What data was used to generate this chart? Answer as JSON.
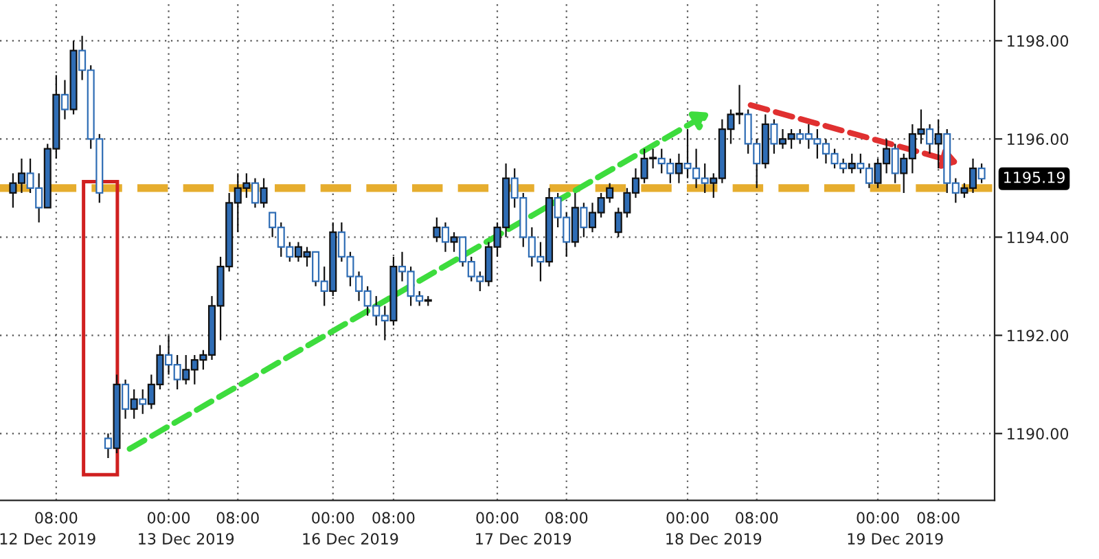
{
  "chart_data": {
    "type": "candlestick",
    "categories": [
      null,
      null,
      null,
      null,
      "12 Dec 2019",
      "08:00",
      null,
      null,
      null,
      null,
      null,
      null,
      null,
      null,
      null,
      null,
      null,
      null,
      "00:00",
      null,
      "13 Dec 2019",
      null,
      null,
      null,
      null,
      null,
      "08:00",
      null,
      null,
      null,
      null,
      null,
      null,
      null,
      null,
      null,
      null,
      "00:00",
      null,
      "16 Dec 2019",
      null,
      null,
      null,
      null,
      "08:00",
      null,
      null,
      null,
      null,
      null,
      null,
      null,
      null,
      null,
      null,
      null,
      "00:00",
      null,
      null,
      "17 Dec 2019",
      null,
      null,
      null,
      null,
      "08:00",
      null,
      null,
      null,
      null,
      null,
      null,
      null,
      null,
      null,
      null,
      null,
      null,
      null,
      "00:00",
      null,
      null,
      "18 Dec 2019",
      null,
      null,
      null,
      null,
      "08:00",
      null,
      null,
      null,
      null,
      null,
      null,
      null,
      null,
      null,
      null,
      null,
      null,
      null,
      "00:00",
      null,
      "19 Dec 2019",
      null,
      null,
      null,
      null,
      "08:00",
      null,
      null,
      null,
      null,
      null
    ],
    "ohlc": [
      [
        1194.9,
        1195.3,
        1194.6,
        1195.1
      ],
      [
        1195.1,
        1195.6,
        1194.9,
        1195.3
      ],
      [
        1195.3,
        1195.6,
        1194.9,
        1195.0
      ],
      [
        1195.0,
        1195.3,
        1194.3,
        1194.6
      ],
      [
        1194.6,
        1195.9,
        1194.6,
        1195.8
      ],
      [
        1195.8,
        1197.3,
        1195.6,
        1196.9
      ],
      [
        1196.9,
        1197.2,
        1196.4,
        1196.6
      ],
      [
        1196.6,
        1198.0,
        1196.5,
        1197.8
      ],
      [
        1197.8,
        1198.1,
        1197.2,
        1197.4
      ],
      [
        1197.4,
        1197.5,
        1195.8,
        1196.0
      ],
      [
        1196.0,
        1196.1,
        1194.7,
        1194.9
      ],
      [
        1189.9,
        1190.0,
        1189.5,
        1189.7
      ],
      [
        1189.7,
        1191.2,
        1189.6,
        1191.0
      ],
      [
        1191.0,
        1191.1,
        1190.3,
        1190.5
      ],
      [
        1190.5,
        1190.9,
        1190.3,
        1190.7
      ],
      [
        1190.7,
        1190.9,
        1190.4,
        1190.6
      ],
      [
        1190.6,
        1191.2,
        1190.5,
        1191.0
      ],
      [
        1191.0,
        1191.8,
        1190.9,
        1191.6
      ],
      [
        1191.6,
        1192.0,
        1191.2,
        1191.4
      ],
      [
        1191.4,
        1191.6,
        1190.9,
        1191.1
      ],
      [
        1191.1,
        1191.6,
        1191.0,
        1191.3
      ],
      [
        1191.3,
        1191.6,
        1191.0,
        1191.5
      ],
      [
        1191.5,
        1191.7,
        1191.3,
        1191.6
      ],
      [
        1191.6,
        1192.8,
        1191.5,
        1192.6
      ],
      [
        1192.6,
        1193.6,
        1191.9,
        1193.4
      ],
      [
        1193.4,
        1194.9,
        1193.3,
        1194.7
      ],
      [
        1194.7,
        1195.3,
        1194.1,
        1195.0
      ],
      [
        1195.0,
        1195.3,
        1194.8,
        1195.1
      ],
      [
        1195.1,
        1195.2,
        1194.6,
        1194.7
      ],
      [
        1194.7,
        1195.2,
        1194.6,
        1195.0
      ],
      [
        1194.5,
        1194.5,
        1194.0,
        1194.2
      ],
      [
        1194.2,
        1194.3,
        1193.6,
        1193.8
      ],
      [
        1193.8,
        1193.9,
        1193.5,
        1193.6
      ],
      [
        1193.6,
        1193.9,
        1193.5,
        1193.8
      ],
      [
        1193.6,
        1193.8,
        1193.4,
        1193.7
      ],
      [
        1193.7,
        1193.7,
        1193.0,
        1193.1
      ],
      [
        1193.1,
        1193.4,
        1192.6,
        1192.9
      ],
      [
        1192.9,
        1194.3,
        1192.8,
        1194.1
      ],
      [
        1194.1,
        1194.3,
        1193.5,
        1193.6
      ],
      [
        1193.6,
        1193.7,
        1193.0,
        1193.2
      ],
      [
        1193.2,
        1193.3,
        1192.7,
        1192.9
      ],
      [
        1192.9,
        1193.0,
        1192.4,
        1192.6
      ],
      [
        1192.6,
        1192.8,
        1192.2,
        1192.4
      ],
      [
        1192.4,
        1192.6,
        1191.9,
        1192.3
      ],
      [
        1192.3,
        1193.6,
        1192.2,
        1193.4
      ],
      [
        1193.4,
        1193.7,
        1193.1,
        1193.3
      ],
      [
        1193.3,
        1193.4,
        1192.6,
        1192.8
      ],
      [
        1192.8,
        1192.9,
        1192.6,
        1192.7
      ],
      [
        1192.7,
        1192.8,
        1192.6,
        1192.7
      ],
      [
        1194.0,
        1194.4,
        1193.9,
        1194.2
      ],
      [
        1194.2,
        1194.3,
        1193.7,
        1193.9
      ],
      [
        1193.9,
        1194.1,
        1193.7,
        1194.0
      ],
      [
        1194.0,
        1194.0,
        1193.4,
        1193.5
      ],
      [
        1193.5,
        1193.6,
        1193.1,
        1193.2
      ],
      [
        1193.2,
        1193.3,
        1192.9,
        1193.1
      ],
      [
        1193.1,
        1193.9,
        1193.0,
        1193.8
      ],
      [
        1193.8,
        1194.3,
        1193.6,
        1194.2
      ],
      [
        1194.2,
        1195.5,
        1194.0,
        1195.2
      ],
      [
        1195.2,
        1195.4,
        1194.6,
        1194.8
      ],
      [
        1194.8,
        1194.9,
        1193.8,
        1194.0
      ],
      [
        1194.0,
        1194.2,
        1193.4,
        1193.6
      ],
      [
        1193.6,
        1193.9,
        1193.1,
        1193.5
      ],
      [
        1193.5,
        1195.0,
        1193.4,
        1194.8
      ],
      [
        1194.8,
        1194.9,
        1194.2,
        1194.4
      ],
      [
        1194.4,
        1194.5,
        1193.6,
        1193.9
      ],
      [
        1193.9,
        1194.9,
        1193.8,
        1194.6
      ],
      [
        1194.6,
        1194.7,
        1194.0,
        1194.2
      ],
      [
        1194.2,
        1194.7,
        1194.1,
        1194.5
      ],
      [
        1194.5,
        1194.9,
        1194.4,
        1194.8
      ],
      [
        1194.8,
        1195.1,
        1194.7,
        1195.0
      ],
      [
        1194.1,
        1194.6,
        1194.0,
        1194.5
      ],
      [
        1194.5,
        1195.0,
        1194.4,
        1194.9
      ],
      [
        1194.9,
        1195.4,
        1194.8,
        1195.2
      ],
      [
        1195.2,
        1195.8,
        1195.1,
        1195.6
      ],
      [
        1195.6,
        1195.8,
        1195.4,
        1195.6
      ],
      [
        1195.6,
        1195.8,
        1195.3,
        1195.5
      ],
      [
        1195.5,
        1195.6,
        1195.1,
        1195.3
      ],
      [
        1195.3,
        1195.7,
        1195.1,
        1195.5
      ],
      [
        1195.5,
        1196.2,
        1195.2,
        1195.4
      ],
      [
        1195.4,
        1195.8,
        1195.0,
        1195.2
      ],
      [
        1195.2,
        1195.5,
        1194.9,
        1195.1
      ],
      [
        1195.1,
        1195.3,
        1194.8,
        1195.2
      ],
      [
        1195.2,
        1196.4,
        1195.1,
        1196.2
      ],
      [
        1196.2,
        1196.6,
        1195.9,
        1196.5
      ],
      [
        1196.5,
        1197.1,
        1196.3,
        1196.5
      ],
      [
        1196.5,
        1196.6,
        1195.7,
        1195.9
      ],
      [
        1195.9,
        1196.0,
        1195.0,
        1195.5
      ],
      [
        1195.5,
        1196.5,
        1195.4,
        1196.3
      ],
      [
        1196.3,
        1196.4,
        1195.7,
        1195.9
      ],
      [
        1195.9,
        1196.2,
        1195.8,
        1196.0
      ],
      [
        1196.0,
        1196.2,
        1195.8,
        1196.1
      ],
      [
        1196.1,
        1196.2,
        1195.9,
        1196.0
      ],
      [
        1196.1,
        1196.3,
        1195.8,
        1196.0
      ],
      [
        1196.0,
        1196.2,
        1195.6,
        1195.9
      ],
      [
        1195.9,
        1196.0,
        1195.5,
        1195.7
      ],
      [
        1195.7,
        1195.8,
        1195.4,
        1195.5
      ],
      [
        1195.5,
        1195.6,
        1195.3,
        1195.4
      ],
      [
        1195.4,
        1195.7,
        1195.3,
        1195.5
      ],
      [
        1195.5,
        1195.7,
        1195.3,
        1195.4
      ],
      [
        1195.4,
        1195.5,
        1195.0,
        1195.1
      ],
      [
        1195.1,
        1195.6,
        1195.0,
        1195.5
      ],
      [
        1195.5,
        1196.0,
        1195.3,
        1195.8
      ],
      [
        1195.8,
        1195.9,
        1195.1,
        1195.3
      ],
      [
        1195.3,
        1195.7,
        1194.9,
        1195.6
      ],
      [
        1195.6,
        1196.3,
        1195.3,
        1196.1
      ],
      [
        1196.1,
        1196.6,
        1195.9,
        1196.2
      ],
      [
        1196.2,
        1196.3,
        1195.7,
        1195.9
      ],
      [
        1195.9,
        1196.4,
        1195.4,
        1196.1
      ],
      [
        1196.1,
        1196.2,
        1194.9,
        1195.1
      ],
      [
        1195.1,
        1195.2,
        1194.7,
        1194.9
      ],
      [
        1194.9,
        1195.1,
        1194.8,
        1195.0
      ],
      [
        1195.0,
        1195.6,
        1194.9,
        1195.4
      ],
      [
        1195.4,
        1195.5,
        1195.1,
        1195.19
      ]
    ],
    "color": "#2f6db5",
    "ylim": [
      1188.64,
      1198.83
    ],
    "yticks": [
      {
        "value": 1190,
        "label": "1190.00"
      },
      {
        "value": 1192,
        "label": "1192.00"
      },
      {
        "value": 1194,
        "label": "1194.00"
      },
      {
        "value": 1196,
        "label": "1196.00"
      },
      {
        "value": 1198,
        "label": "1198.00"
      }
    ],
    "ref_lines": [
      {
        "axis": "y",
        "value": 1195.0,
        "color": "#e6ad2e",
        "line_style": "dashed"
      }
    ],
    "annotations": [
      "1195.19"
    ],
    "grid": true
  }
}
